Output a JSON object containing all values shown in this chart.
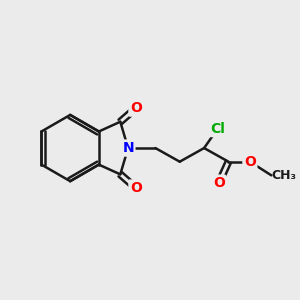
{
  "background_color": "#ebebeb",
  "bond_color": "#1a1a1a",
  "bond_width": 1.8,
  "atom_colors": {
    "O": "#ff0000",
    "N": "#0000ff",
    "Cl": "#00aa00",
    "C": "#1a1a1a"
  },
  "font_size_atoms": 10,
  "figsize": [
    3.0,
    3.0
  ],
  "dpi": 100
}
